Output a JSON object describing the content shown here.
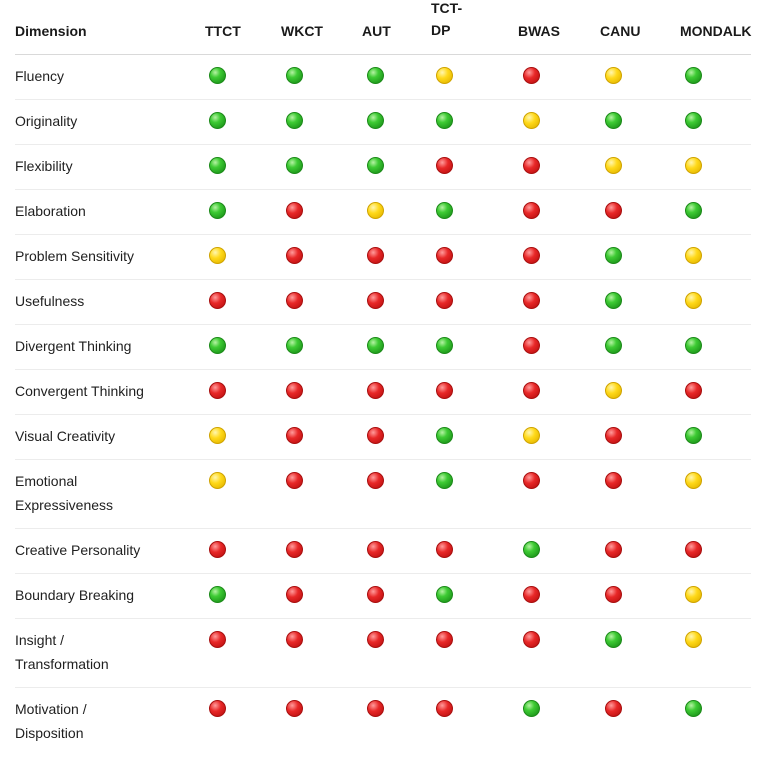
{
  "table": {
    "columns": [
      "Dimension",
      "TTCT",
      "WKCT",
      "AUT",
      "TCT-\nDP",
      "BWAS",
      "CANU",
      "MONDALK"
    ],
    "rows": [
      {
        "label": "Fluency",
        "ratings": [
          "green",
          "green",
          "green",
          "yellow",
          "red",
          "yellow",
          "green"
        ]
      },
      {
        "label": "Originality",
        "ratings": [
          "green",
          "green",
          "green",
          "green",
          "yellow",
          "green",
          "green"
        ]
      },
      {
        "label": "Flexibility",
        "ratings": [
          "green",
          "green",
          "green",
          "red",
          "red",
          "yellow",
          "yellow"
        ]
      },
      {
        "label": "Elaboration",
        "ratings": [
          "green",
          "red",
          "yellow",
          "green",
          "red",
          "red",
          "green"
        ]
      },
      {
        "label": "Problem Sensitivity",
        "ratings": [
          "yellow",
          "red",
          "red",
          "red",
          "red",
          "green",
          "yellow"
        ]
      },
      {
        "label": "Usefulness",
        "ratings": [
          "red",
          "red",
          "red",
          "red",
          "red",
          "green",
          "yellow"
        ]
      },
      {
        "label": "Divergent Thinking",
        "ratings": [
          "green",
          "green",
          "green",
          "green",
          "red",
          "green",
          "green"
        ]
      },
      {
        "label": "Convergent Thinking",
        "ratings": [
          "red",
          "red",
          "red",
          "red",
          "red",
          "yellow",
          "red"
        ]
      },
      {
        "label": "Visual Creativity",
        "ratings": [
          "yellow",
          "red",
          "red",
          "green",
          "yellow",
          "red",
          "green"
        ]
      },
      {
        "label": "Emotional\nExpressiveness",
        "ratings": [
          "yellow",
          "red",
          "red",
          "green",
          "red",
          "red",
          "yellow"
        ]
      },
      {
        "label": "Creative Personality",
        "ratings": [
          "red",
          "red",
          "red",
          "red",
          "green",
          "red",
          "red"
        ]
      },
      {
        "label": "Boundary Breaking",
        "ratings": [
          "green",
          "red",
          "red",
          "green",
          "red",
          "red",
          "yellow"
        ]
      },
      {
        "label": "Insight /\nTransformation",
        "ratings": [
          "red",
          "red",
          "red",
          "red",
          "red",
          "green",
          "yellow"
        ]
      },
      {
        "label": "Motivation /\nDisposition",
        "ratings": [
          "red",
          "red",
          "red",
          "red",
          "green",
          "red",
          "green"
        ]
      }
    ]
  },
  "colors": {
    "green": "#2fb52a",
    "yellow": "#ffd400",
    "red": "#d81c1c",
    "divider": "#ececec"
  }
}
